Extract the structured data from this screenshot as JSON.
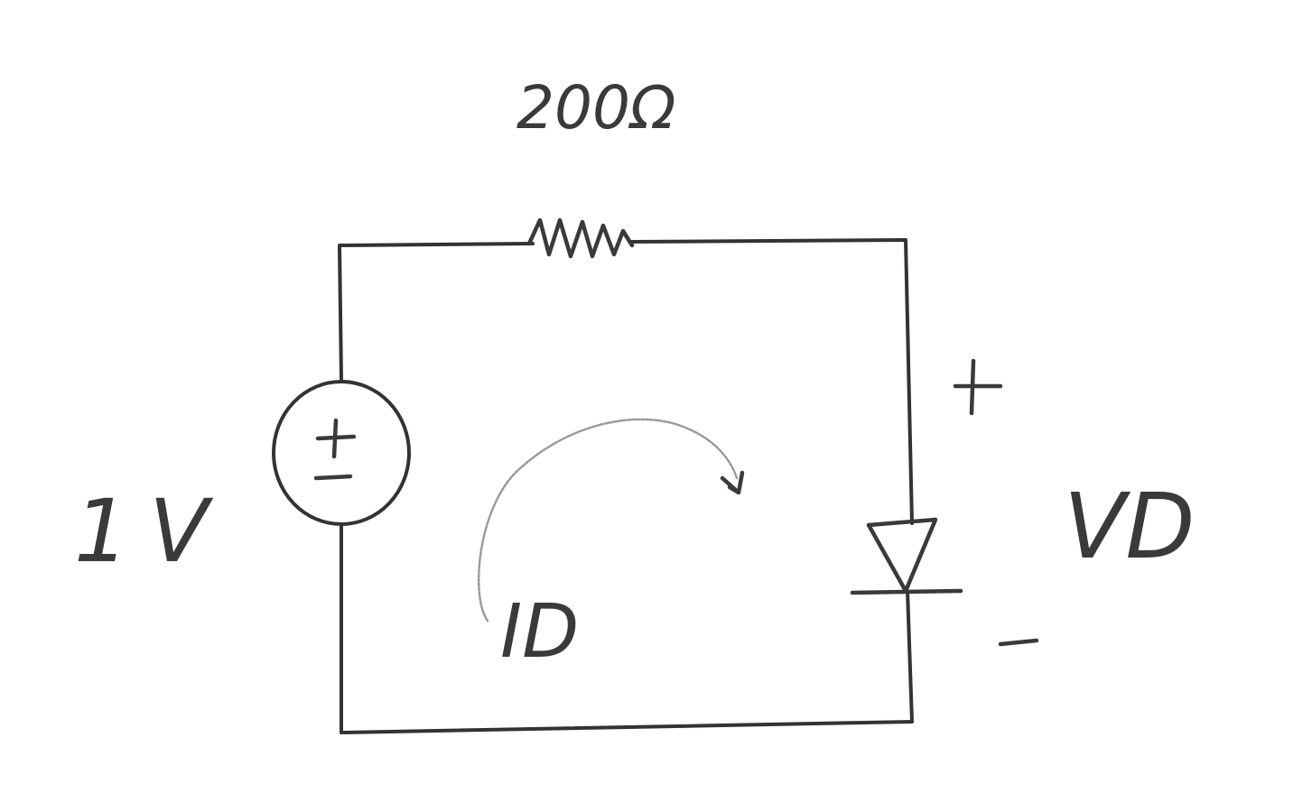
{
  "resistor": {
    "label": "200Ω"
  },
  "source": {
    "label": "1V",
    "plus": "+",
    "minus": "−"
  },
  "diode": {
    "voltage_label": "VD",
    "plus": "+",
    "minus": "−"
  },
  "current": {
    "label": "ID"
  }
}
